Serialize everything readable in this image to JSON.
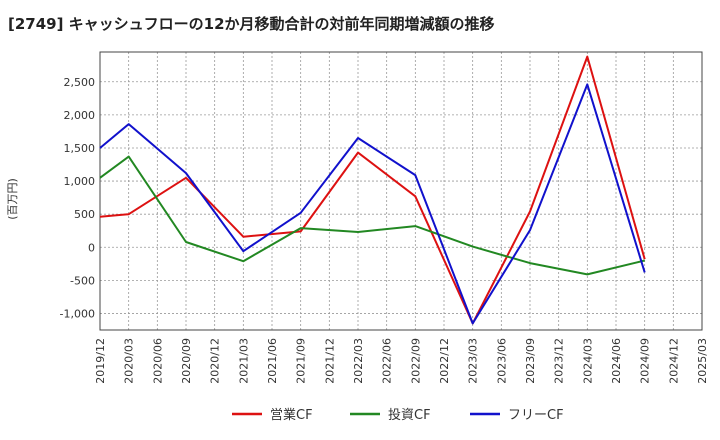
{
  "chart_data": {
    "type": "line",
    "title": "[2749]  キャッシュフローの12か月移動合計の対前年同期増減額の推移",
    "ylabel": "(百万円)",
    "xlabel": "",
    "ylim": [
      -1250,
      2950
    ],
    "yticks": [
      -1000,
      -500,
      0,
      500,
      1000,
      1500,
      2000,
      2500
    ],
    "ytick_labels": [
      "-1,000",
      "-500",
      "0",
      "500",
      "1,000",
      "1,500",
      "2,000",
      "2,500"
    ],
    "x_ticks": [
      "2019/12",
      "2020/03",
      "2020/06",
      "2020/09",
      "2020/12",
      "2021/03",
      "2021/06",
      "2021/09",
      "2021/12",
      "2022/03",
      "2022/06",
      "2022/09",
      "2022/12",
      "2023/03",
      "2023/06",
      "2023/09",
      "2023/12",
      "2024/03",
      "2024/06",
      "2024/09",
      "2024/12",
      "2025/03"
    ],
    "grid": true,
    "legend_position": "bottom",
    "series": [
      {
        "name": "営業CF",
        "color": "#dd1111",
        "points": [
          {
            "x": "2019/12",
            "y": 460
          },
          {
            "x": "2020/03",
            "y": 500
          },
          {
            "x": "2020/09",
            "y": 1050
          },
          {
            "x": "2021/03",
            "y": 160
          },
          {
            "x": "2021/09",
            "y": 240
          },
          {
            "x": "2022/03",
            "y": 1430
          },
          {
            "x": "2022/09",
            "y": 770
          },
          {
            "x": "2023/03",
            "y": -1150
          },
          {
            "x": "2023/09",
            "y": 540
          },
          {
            "x": "2024/03",
            "y": 2880
          },
          {
            "x": "2024/09",
            "y": -180
          }
        ]
      },
      {
        "name": "投資CF",
        "color": "#228822",
        "points": [
          {
            "x": "2019/12",
            "y": 1050
          },
          {
            "x": "2020/03",
            "y": 1370
          },
          {
            "x": "2020/09",
            "y": 80
          },
          {
            "x": "2021/03",
            "y": -210
          },
          {
            "x": "2021/09",
            "y": 290
          },
          {
            "x": "2022/03",
            "y": 230
          },
          {
            "x": "2022/09",
            "y": 320
          },
          {
            "x": "2023/03",
            "y": 10
          },
          {
            "x": "2023/09",
            "y": -240
          },
          {
            "x": "2024/03",
            "y": -410
          },
          {
            "x": "2024/09",
            "y": -200
          }
        ]
      },
      {
        "name": "フリーCF",
        "color": "#1111cc",
        "points": [
          {
            "x": "2019/12",
            "y": 1500
          },
          {
            "x": "2020/03",
            "y": 1860
          },
          {
            "x": "2020/09",
            "y": 1120
          },
          {
            "x": "2021/03",
            "y": -60
          },
          {
            "x": "2021/09",
            "y": 520
          },
          {
            "x": "2022/03",
            "y": 1650
          },
          {
            "x": "2022/09",
            "y": 1090
          },
          {
            "x": "2023/03",
            "y": -1150
          },
          {
            "x": "2023/09",
            "y": 260
          },
          {
            "x": "2024/03",
            "y": 2460
          },
          {
            "x": "2024/09",
            "y": -380
          }
        ]
      }
    ]
  }
}
